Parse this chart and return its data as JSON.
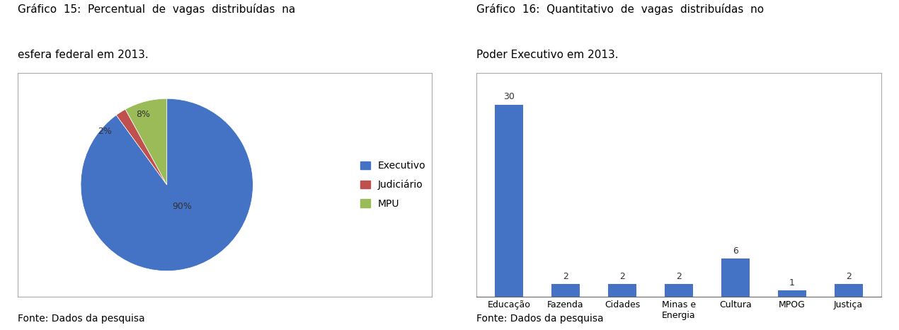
{
  "pie_title_line1": "Gráfico  15:  Percentual  de  vagas  distribuídas  na",
  "pie_title_line2": "esfera federal em 2013.",
  "pie_values": [
    90,
    2,
    8
  ],
  "pie_labels": [
    "Executivo",
    "Judiciário",
    "MPU"
  ],
  "pie_colors": [
    "#4472C4",
    "#C0504D",
    "#9BBB59"
  ],
  "pie_pct_labels": [
    "90%",
    "2%",
    "8%"
  ],
  "pie_startangle": 90,
  "pie_source": "Fonte: Dados da pesquisa",
  "bar_title_line1": "Gráfico  16:  Quantitativo  de  vagas  distribuídas  no",
  "bar_title_line2": "Poder Executivo em 2013.",
  "bar_categories": [
    "Educação",
    "Fazenda",
    "Cidades",
    "Minas e\nEnergia",
    "Cultura",
    "MPOG",
    "Justiça"
  ],
  "bar_values": [
    30,
    2,
    2,
    2,
    6,
    1,
    2
  ],
  "bar_color": "#4472C4",
  "bar_source": "Fonte: Dados da pesquisa",
  "background_color": "#FFFFFF",
  "title_fontsize": 11,
  "legend_fontsize": 10,
  "source_fontsize": 10,
  "tick_fontsize": 9,
  "label_fontsize": 9
}
